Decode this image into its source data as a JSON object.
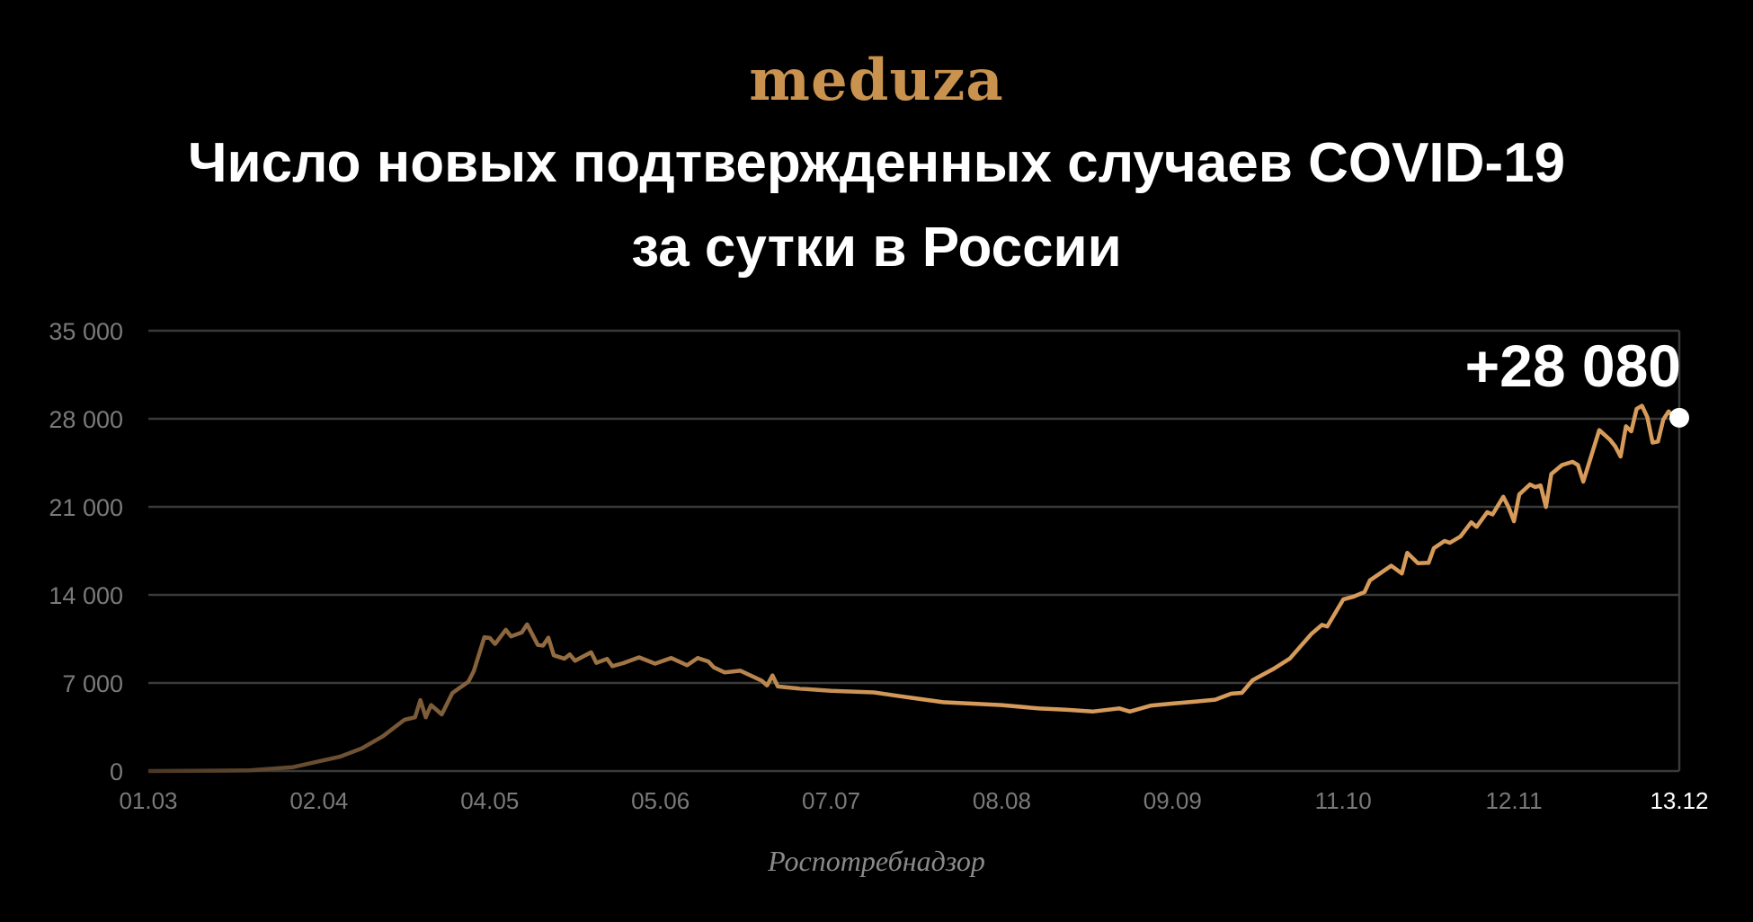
{
  "logo": "meduza",
  "title_line1": "Число новых подтвержденных случаев COVID-19",
  "title_line2": "за сутки в России",
  "source": "Роспотребнадзор",
  "colors": {
    "line_start": "#4a3826",
    "line_end": "#d69b5a",
    "grid": "#3a3a3a",
    "tick": "#7a7a7a",
    "logo": "#c9924f"
  },
  "chart_data": {
    "type": "line",
    "title": "Число новых подтвержденных случаев COVID-19 за сутки в России",
    "ylim": [
      0,
      35000
    ],
    "yticks": [
      0,
      7000,
      14000,
      21000,
      28000,
      35000
    ],
    "ytick_labels": [
      "0",
      "7 000",
      "14 000",
      "21 000",
      "28 000",
      "35 000"
    ],
    "xticks": [
      "2020-03-01",
      "2020-04-02",
      "2020-05-04",
      "2020-06-05",
      "2020-07-07",
      "2020-08-08",
      "2020-09-09",
      "2020-10-11",
      "2020-11-12",
      "2020-12-13"
    ],
    "xtick_labels": [
      "01.03",
      "02.04",
      "04.05",
      "05.06",
      "07.07",
      "08.08",
      "09.09",
      "11.10",
      "12.11",
      "13.12"
    ],
    "grid": true,
    "annotation": "+28 080",
    "last_value": 28080,
    "points": [
      [
        "2020-03-01",
        0
      ],
      [
        "2020-03-20",
        50
      ],
      [
        "2020-03-28",
        300
      ],
      [
        "2020-04-02",
        770
      ],
      [
        "2020-04-06",
        1150
      ],
      [
        "2020-04-10",
        1800
      ],
      [
        "2020-04-14",
        2770
      ],
      [
        "2020-04-18",
        4070
      ],
      [
        "2020-04-20",
        4270
      ],
      [
        "2020-04-21",
        5640
      ],
      [
        "2020-04-22",
        4270
      ],
      [
        "2020-04-23",
        5240
      ],
      [
        "2020-04-25",
        4500
      ],
      [
        "2020-04-27",
        6200
      ],
      [
        "2020-04-30",
        7100
      ],
      [
        "2020-05-01",
        7933
      ],
      [
        "2020-05-03",
        10633
      ],
      [
        "2020-05-04",
        10581
      ],
      [
        "2020-05-05",
        10102
      ],
      [
        "2020-05-07",
        11231
      ],
      [
        "2020-05-08",
        10699
      ],
      [
        "2020-05-10",
        11012
      ],
      [
        "2020-05-11",
        11656
      ],
      [
        "2020-05-13",
        10028
      ],
      [
        "2020-05-14",
        9974
      ],
      [
        "2020-05-15",
        10598
      ],
      [
        "2020-05-16",
        9200
      ],
      [
        "2020-05-18",
        8926
      ],
      [
        "2020-05-19",
        9263
      ],
      [
        "2020-05-20",
        8764
      ],
      [
        "2020-05-23",
        9434
      ],
      [
        "2020-05-24",
        8599
      ],
      [
        "2020-05-26",
        8915
      ],
      [
        "2020-05-27",
        8338
      ],
      [
        "2020-05-29",
        8572
      ],
      [
        "2020-06-01",
        9035
      ],
      [
        "2020-06-04",
        8536
      ],
      [
        "2020-06-07",
        8984
      ],
      [
        "2020-06-10",
        8404
      ],
      [
        "2020-06-12",
        8987
      ],
      [
        "2020-06-14",
        8706
      ],
      [
        "2020-06-15",
        8246
      ],
      [
        "2020-06-17",
        7843
      ],
      [
        "2020-06-20",
        7972
      ],
      [
        "2020-06-24",
        7176
      ],
      [
        "2020-06-25",
        6800
      ],
      [
        "2020-06-26",
        7600
      ],
      [
        "2020-06-27",
        6719
      ],
      [
        "2020-07-01",
        6556
      ],
      [
        "2020-07-07",
        6368
      ],
      [
        "2020-07-15",
        6248
      ],
      [
        "2020-07-20",
        5940
      ],
      [
        "2020-07-28",
        5475
      ],
      [
        "2020-08-08",
        5241
      ],
      [
        "2020-08-15",
        4969
      ],
      [
        "2020-08-20",
        4870
      ],
      [
        "2020-08-25",
        4729
      ],
      [
        "2020-08-30",
        4980
      ],
      [
        "2020-09-01",
        4729
      ],
      [
        "2020-09-05",
        5205
      ],
      [
        "2020-09-09",
        5363
      ],
      [
        "2020-09-13",
        5509
      ],
      [
        "2020-09-17",
        5670
      ],
      [
        "2020-09-20",
        6148
      ],
      [
        "2020-09-22",
        6215
      ],
      [
        "2020-09-24",
        7212
      ],
      [
        "2020-09-28",
        8135
      ],
      [
        "2020-10-01",
        8945
      ],
      [
        "2020-10-05",
        10888
      ],
      [
        "2020-10-07",
        11615
      ],
      [
        "2020-10-08",
        11493
      ],
      [
        "2020-10-11",
        13634
      ],
      [
        "2020-10-13",
        13868
      ],
      [
        "2020-10-15",
        14231
      ],
      [
        "2020-10-16",
        15150
      ],
      [
        "2020-10-20",
        16319
      ],
      [
        "2020-10-22",
        15700
      ],
      [
        "2020-10-23",
        17340
      ],
      [
        "2020-10-25",
        16521
      ],
      [
        "2020-10-27",
        16550
      ],
      [
        "2020-10-28",
        17717
      ],
      [
        "2020-10-30",
        18283
      ],
      [
        "2020-10-31",
        18140
      ],
      [
        "2020-11-02",
        18648
      ],
      [
        "2020-11-04",
        19768
      ],
      [
        "2020-11-05",
        19404
      ],
      [
        "2020-11-07",
        20582
      ],
      [
        "2020-11-08",
        20396
      ],
      [
        "2020-11-10",
        21798
      ],
      [
        "2020-11-11",
        20977
      ],
      [
        "2020-11-12",
        19851
      ],
      [
        "2020-11-13",
        21983
      ],
      [
        "2020-11-15",
        22778
      ],
      [
        "2020-11-16",
        22572
      ],
      [
        "2020-11-17",
        22700
      ],
      [
        "2020-11-18",
        20985
      ],
      [
        "2020-11-19",
        23610
      ],
      [
        "2020-11-21",
        24318
      ],
      [
        "2020-11-23",
        24581
      ],
      [
        "2020-11-24",
        24326
      ],
      [
        "2020-11-25",
        23000
      ],
      [
        "2020-11-28",
        27100
      ],
      [
        "2020-11-30",
        26338
      ],
      [
        "2020-12-01",
        25800
      ],
      [
        "2020-12-02",
        25000
      ],
      [
        "2020-12-03",
        27403
      ],
      [
        "2020-12-04",
        27000
      ],
      [
        "2020-12-05",
        28782
      ],
      [
        "2020-12-06",
        29039
      ],
      [
        "2020-12-07",
        28137
      ],
      [
        "2020-12-08",
        26097
      ],
      [
        "2020-12-09",
        26190
      ],
      [
        "2020-12-10",
        27927
      ],
      [
        "2020-12-11",
        28585
      ],
      [
        "2020-12-12",
        28137
      ],
      [
        "2020-12-13",
        28080
      ]
    ]
  }
}
